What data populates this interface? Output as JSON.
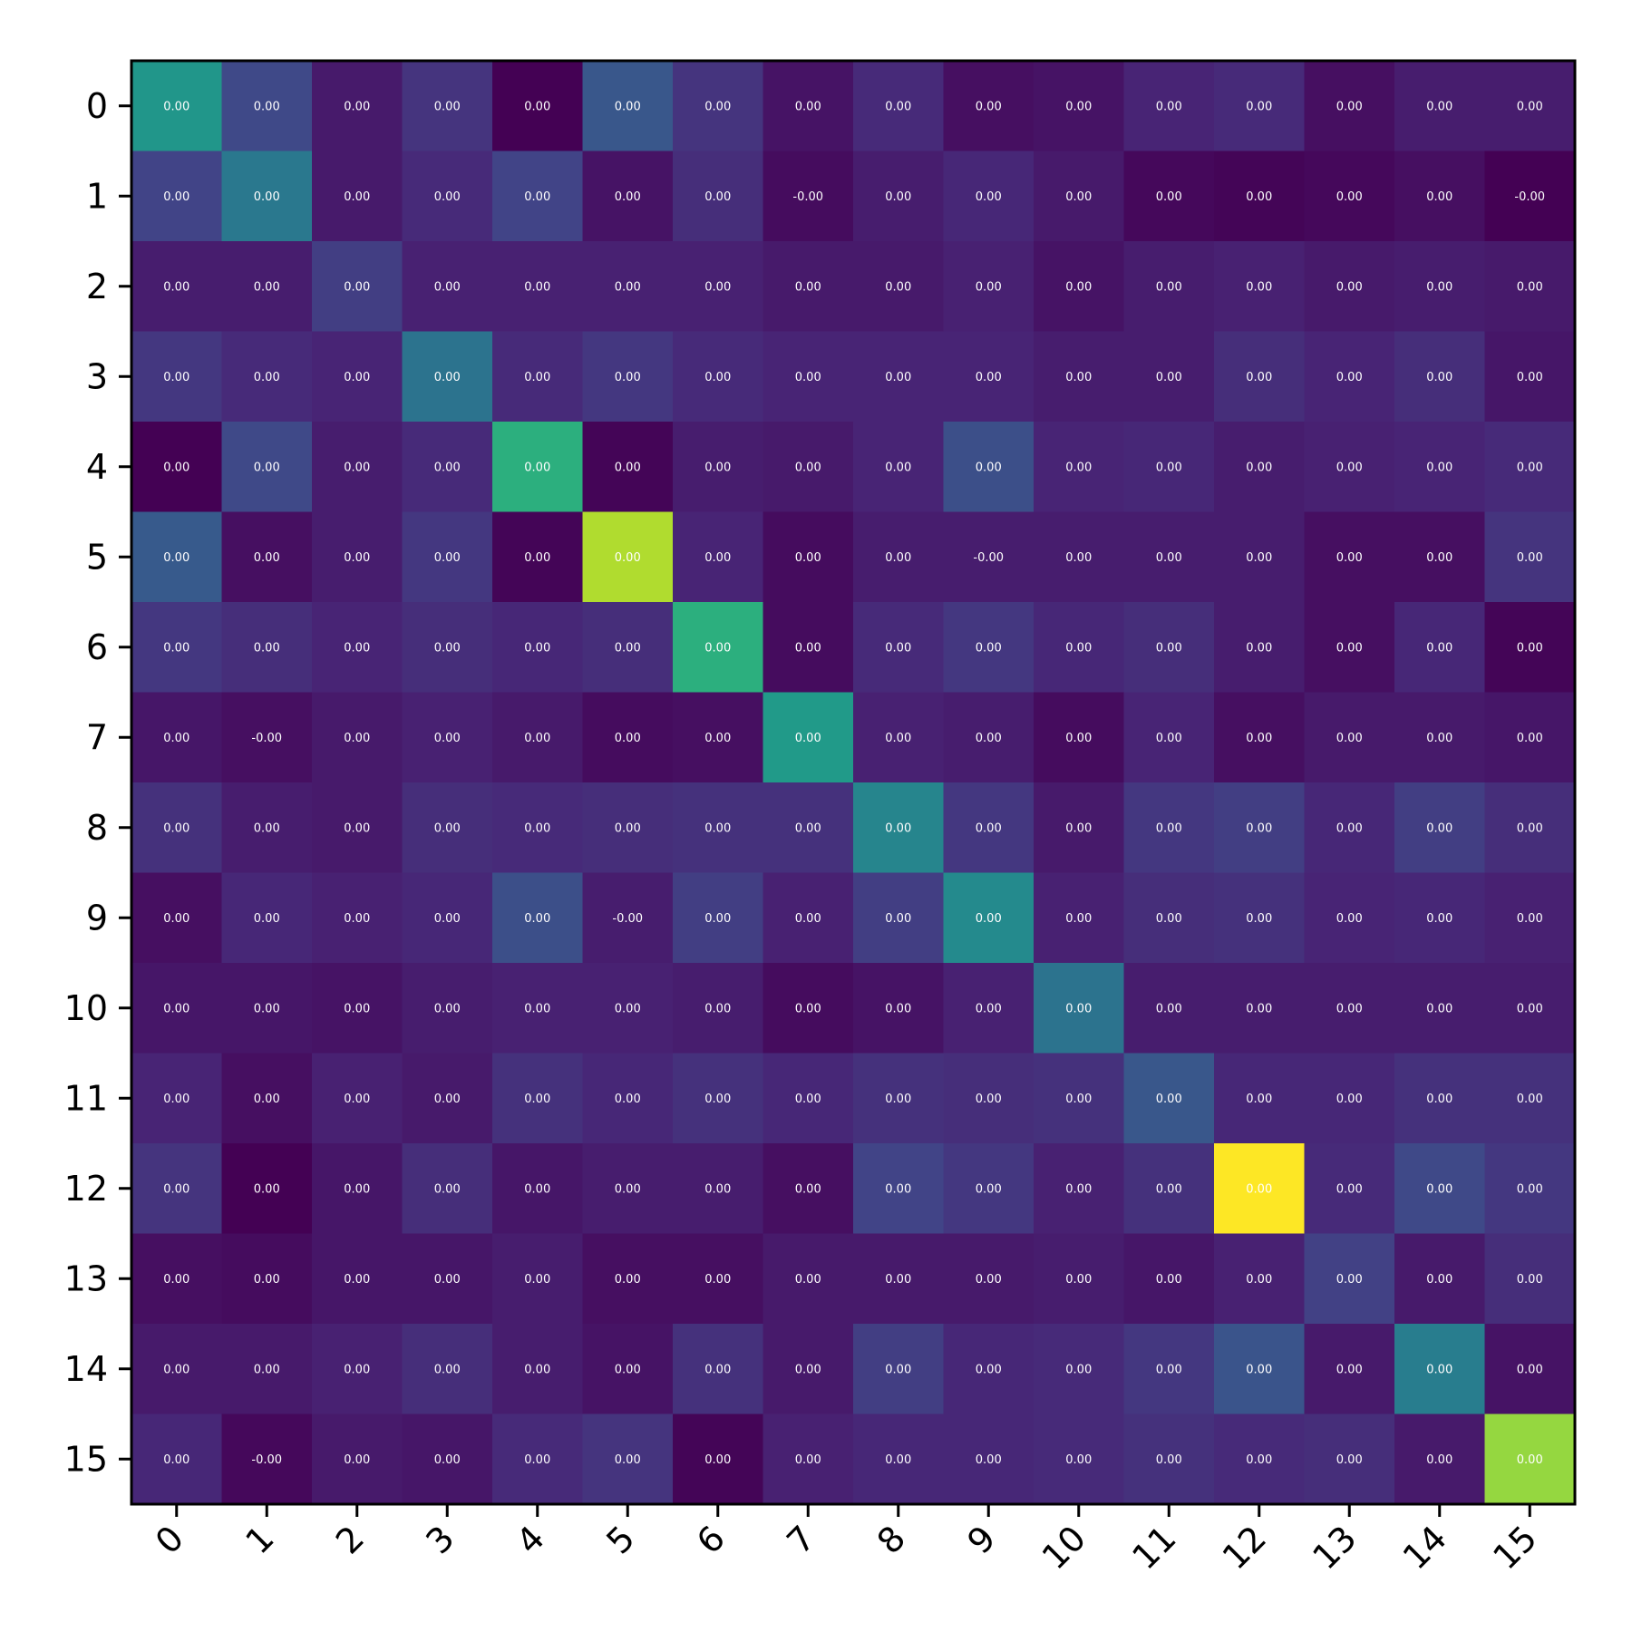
{
  "chart_data": {
    "type": "heatmap",
    "title": "",
    "xlabel": "",
    "ylabel": "",
    "colormap": "viridis",
    "x_ticks": [
      "0",
      "1",
      "2",
      "3",
      "4",
      "5",
      "6",
      "7",
      "8",
      "9",
      "10",
      "11",
      "12",
      "13",
      "14",
      "15"
    ],
    "y_ticks": [
      "0",
      "1",
      "2",
      "3",
      "4",
      "5",
      "6",
      "7",
      "8",
      "9",
      "10",
      "11",
      "12",
      "13",
      "14",
      "15"
    ],
    "labels": [
      [
        "0.00",
        "0.00",
        "0.00",
        "0.00",
        "0.00",
        "0.00",
        "0.00",
        "0.00",
        "0.00",
        "0.00",
        "0.00",
        "0.00",
        "0.00",
        "0.00",
        "0.00",
        "0.00"
      ],
      [
        "0.00",
        "0.00",
        "0.00",
        "0.00",
        "0.00",
        "0.00",
        "0.00",
        "-0.00",
        "0.00",
        "0.00",
        "0.00",
        "0.00",
        "0.00",
        "0.00",
        "0.00",
        "-0.00"
      ],
      [
        "0.00",
        "0.00",
        "0.00",
        "0.00",
        "0.00",
        "0.00",
        "0.00",
        "0.00",
        "0.00",
        "0.00",
        "0.00",
        "0.00",
        "0.00",
        "0.00",
        "0.00",
        "0.00"
      ],
      [
        "0.00",
        "0.00",
        "0.00",
        "0.00",
        "0.00",
        "0.00",
        "0.00",
        "0.00",
        "0.00",
        "0.00",
        "0.00",
        "0.00",
        "0.00",
        "0.00",
        "0.00",
        "0.00"
      ],
      [
        "0.00",
        "0.00",
        "0.00",
        "0.00",
        "0.00",
        "0.00",
        "0.00",
        "0.00",
        "0.00",
        "0.00",
        "0.00",
        "0.00",
        "0.00",
        "0.00",
        "0.00",
        "0.00"
      ],
      [
        "0.00",
        "0.00",
        "0.00",
        "0.00",
        "0.00",
        "0.00",
        "0.00",
        "0.00",
        "0.00",
        "-0.00",
        "0.00",
        "0.00",
        "0.00",
        "0.00",
        "0.00",
        "0.00"
      ],
      [
        "0.00",
        "0.00",
        "0.00",
        "0.00",
        "0.00",
        "0.00",
        "0.00",
        "0.00",
        "0.00",
        "0.00",
        "0.00",
        "0.00",
        "0.00",
        "0.00",
        "0.00",
        "0.00"
      ],
      [
        "0.00",
        "-0.00",
        "0.00",
        "0.00",
        "0.00",
        "0.00",
        "0.00",
        "0.00",
        "0.00",
        "0.00",
        "0.00",
        "0.00",
        "0.00",
        "0.00",
        "0.00",
        "0.00"
      ],
      [
        "0.00",
        "0.00",
        "0.00",
        "0.00",
        "0.00",
        "0.00",
        "0.00",
        "0.00",
        "0.00",
        "0.00",
        "0.00",
        "0.00",
        "0.00",
        "0.00",
        "0.00",
        "0.00"
      ],
      [
        "0.00",
        "0.00",
        "0.00",
        "0.00",
        "0.00",
        "-0.00",
        "0.00",
        "0.00",
        "0.00",
        "0.00",
        "0.00",
        "0.00",
        "0.00",
        "0.00",
        "0.00",
        "0.00"
      ],
      [
        "0.00",
        "0.00",
        "0.00",
        "0.00",
        "0.00",
        "0.00",
        "0.00",
        "0.00",
        "0.00",
        "0.00",
        "0.00",
        "0.00",
        "0.00",
        "0.00",
        "0.00",
        "0.00"
      ],
      [
        "0.00",
        "0.00",
        "0.00",
        "0.00",
        "0.00",
        "0.00",
        "0.00",
        "0.00",
        "0.00",
        "0.00",
        "0.00",
        "0.00",
        "0.00",
        "0.00",
        "0.00",
        "0.00"
      ],
      [
        "0.00",
        "0.00",
        "0.00",
        "0.00",
        "0.00",
        "0.00",
        "0.00",
        "0.00",
        "0.00",
        "0.00",
        "0.00",
        "0.00",
        "0.00",
        "0.00",
        "0.00",
        "0.00"
      ],
      [
        "0.00",
        "0.00",
        "0.00",
        "0.00",
        "0.00",
        "0.00",
        "0.00",
        "0.00",
        "0.00",
        "0.00",
        "0.00",
        "0.00",
        "0.00",
        "0.00",
        "0.00",
        "0.00"
      ],
      [
        "0.00",
        "0.00",
        "0.00",
        "0.00",
        "0.00",
        "0.00",
        "0.00",
        "0.00",
        "0.00",
        "0.00",
        "0.00",
        "0.00",
        "0.00",
        "0.00",
        "0.00",
        "0.00"
      ],
      [
        "0.00",
        "-0.00",
        "0.00",
        "0.00",
        "0.00",
        "0.00",
        "0.00",
        "0.00",
        "0.00",
        "0.00",
        "0.00",
        "0.00",
        "0.00",
        "0.00",
        "0.00",
        "0.00"
      ]
    ],
    "relative_intensity": [
      [
        0.52,
        0.22,
        0.07,
        0.15,
        0.0,
        0.27,
        0.15,
        0.05,
        0.12,
        0.04,
        0.05,
        0.1,
        0.12,
        0.04,
        0.08,
        0.08
      ],
      [
        0.2,
        0.4,
        0.07,
        0.12,
        0.2,
        0.05,
        0.13,
        0.03,
        0.08,
        0.11,
        0.07,
        0.02,
        0.01,
        0.02,
        0.04,
        0.0
      ],
      [
        0.08,
        0.08,
        0.18,
        0.09,
        0.09,
        0.09,
        0.09,
        0.07,
        0.07,
        0.09,
        0.05,
        0.08,
        0.09,
        0.07,
        0.08,
        0.07
      ],
      [
        0.16,
        0.12,
        0.1,
        0.38,
        0.12,
        0.16,
        0.12,
        0.1,
        0.1,
        0.1,
        0.08,
        0.08,
        0.13,
        0.1,
        0.13,
        0.06
      ],
      [
        0.0,
        0.22,
        0.08,
        0.12,
        0.63,
        0.01,
        0.08,
        0.07,
        0.1,
        0.24,
        0.1,
        0.11,
        0.08,
        0.09,
        0.1,
        0.12
      ],
      [
        0.28,
        0.04,
        0.08,
        0.16,
        0.01,
        0.88,
        0.1,
        0.03,
        0.08,
        0.08,
        0.08,
        0.08,
        0.08,
        0.04,
        0.04,
        0.15
      ],
      [
        0.16,
        0.13,
        0.1,
        0.13,
        0.11,
        0.13,
        0.63,
        0.03,
        0.12,
        0.16,
        0.11,
        0.13,
        0.08,
        0.04,
        0.11,
        0.01
      ],
      [
        0.06,
        0.04,
        0.07,
        0.09,
        0.07,
        0.03,
        0.04,
        0.54,
        0.09,
        0.08,
        0.03,
        0.1,
        0.04,
        0.07,
        0.07,
        0.06
      ],
      [
        0.14,
        0.08,
        0.07,
        0.13,
        0.12,
        0.13,
        0.14,
        0.14,
        0.45,
        0.16,
        0.07,
        0.16,
        0.18,
        0.11,
        0.18,
        0.13
      ],
      [
        0.04,
        0.11,
        0.09,
        0.11,
        0.24,
        0.08,
        0.18,
        0.09,
        0.18,
        0.47,
        0.09,
        0.13,
        0.14,
        0.1,
        0.11,
        0.09
      ],
      [
        0.06,
        0.06,
        0.05,
        0.08,
        0.09,
        0.09,
        0.08,
        0.03,
        0.05,
        0.09,
        0.38,
        0.08,
        0.08,
        0.08,
        0.08,
        0.08
      ],
      [
        0.1,
        0.04,
        0.09,
        0.07,
        0.14,
        0.11,
        0.14,
        0.11,
        0.14,
        0.13,
        0.14,
        0.27,
        0.11,
        0.11,
        0.14,
        0.14
      ],
      [
        0.15,
        0.0,
        0.06,
        0.13,
        0.06,
        0.08,
        0.08,
        0.04,
        0.2,
        0.16,
        0.09,
        0.14,
        1.0,
        0.12,
        0.22,
        0.16
      ],
      [
        0.04,
        0.03,
        0.06,
        0.06,
        0.08,
        0.04,
        0.04,
        0.07,
        0.07,
        0.07,
        0.08,
        0.06,
        0.09,
        0.19,
        0.07,
        0.13
      ],
      [
        0.07,
        0.07,
        0.09,
        0.13,
        0.08,
        0.05,
        0.14,
        0.07,
        0.18,
        0.11,
        0.12,
        0.16,
        0.26,
        0.07,
        0.42,
        0.05
      ],
      [
        0.11,
        0.02,
        0.07,
        0.06,
        0.12,
        0.15,
        0.01,
        0.09,
        0.11,
        0.11,
        0.12,
        0.14,
        0.12,
        0.13,
        0.07,
        0.84
      ]
    ]
  }
}
